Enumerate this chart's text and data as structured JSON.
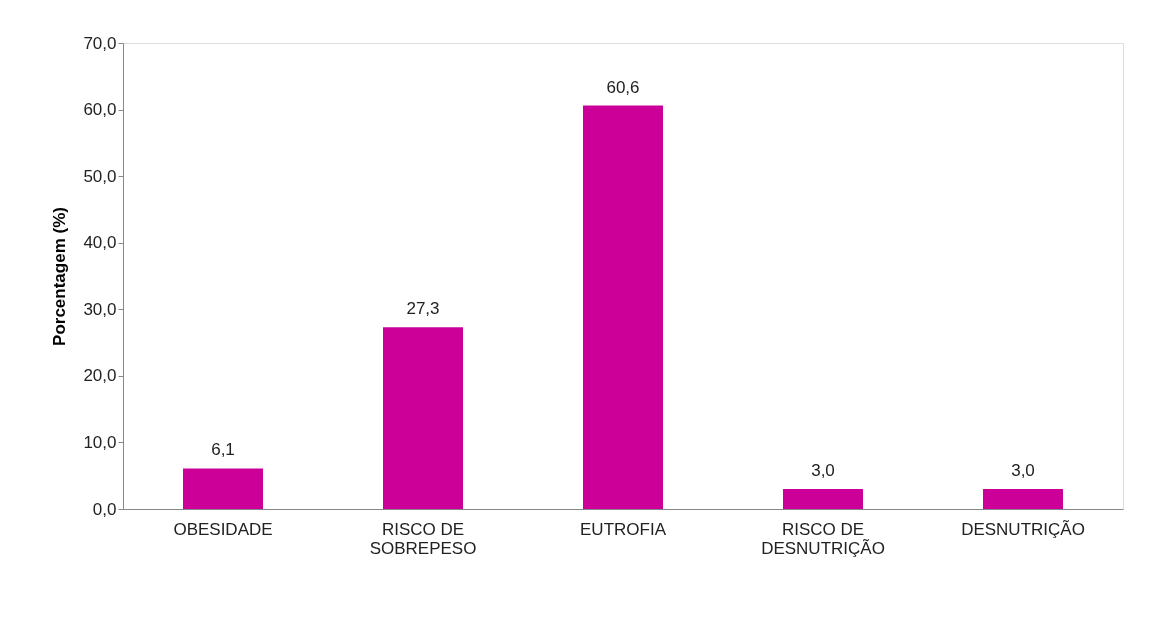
{
  "chart_data": {
    "type": "bar",
    "ylabel": "Porcentagem (%)",
    "categories": [
      "OBESIDADE",
      "RISCO DE SOBREPESO",
      "EUTROFIA",
      "RISCO DE DESNUTRIÇÃO",
      "DESNUTRIÇÃO"
    ],
    "values": [
      6.1,
      27.3,
      60.6,
      3.0,
      3.0
    ],
    "value_labels": [
      "6,1",
      "27,3",
      "60,6",
      "3,0",
      "3,0"
    ],
    "color": "#cc0099",
    "ylim": [
      0,
      70
    ],
    "yticks": [
      {
        "value": 0,
        "label": "0,0"
      },
      {
        "value": 10,
        "label": "10,0"
      },
      {
        "value": 20,
        "label": "20,0"
      },
      {
        "value": 30,
        "label": "30,0"
      },
      {
        "value": 40,
        "label": "40,0"
      },
      {
        "value": 50,
        "label": "50,0"
      },
      {
        "value": 60,
        "label": "60,0"
      },
      {
        "value": 70,
        "label": "70,0"
      }
    ],
    "grid": false
  }
}
